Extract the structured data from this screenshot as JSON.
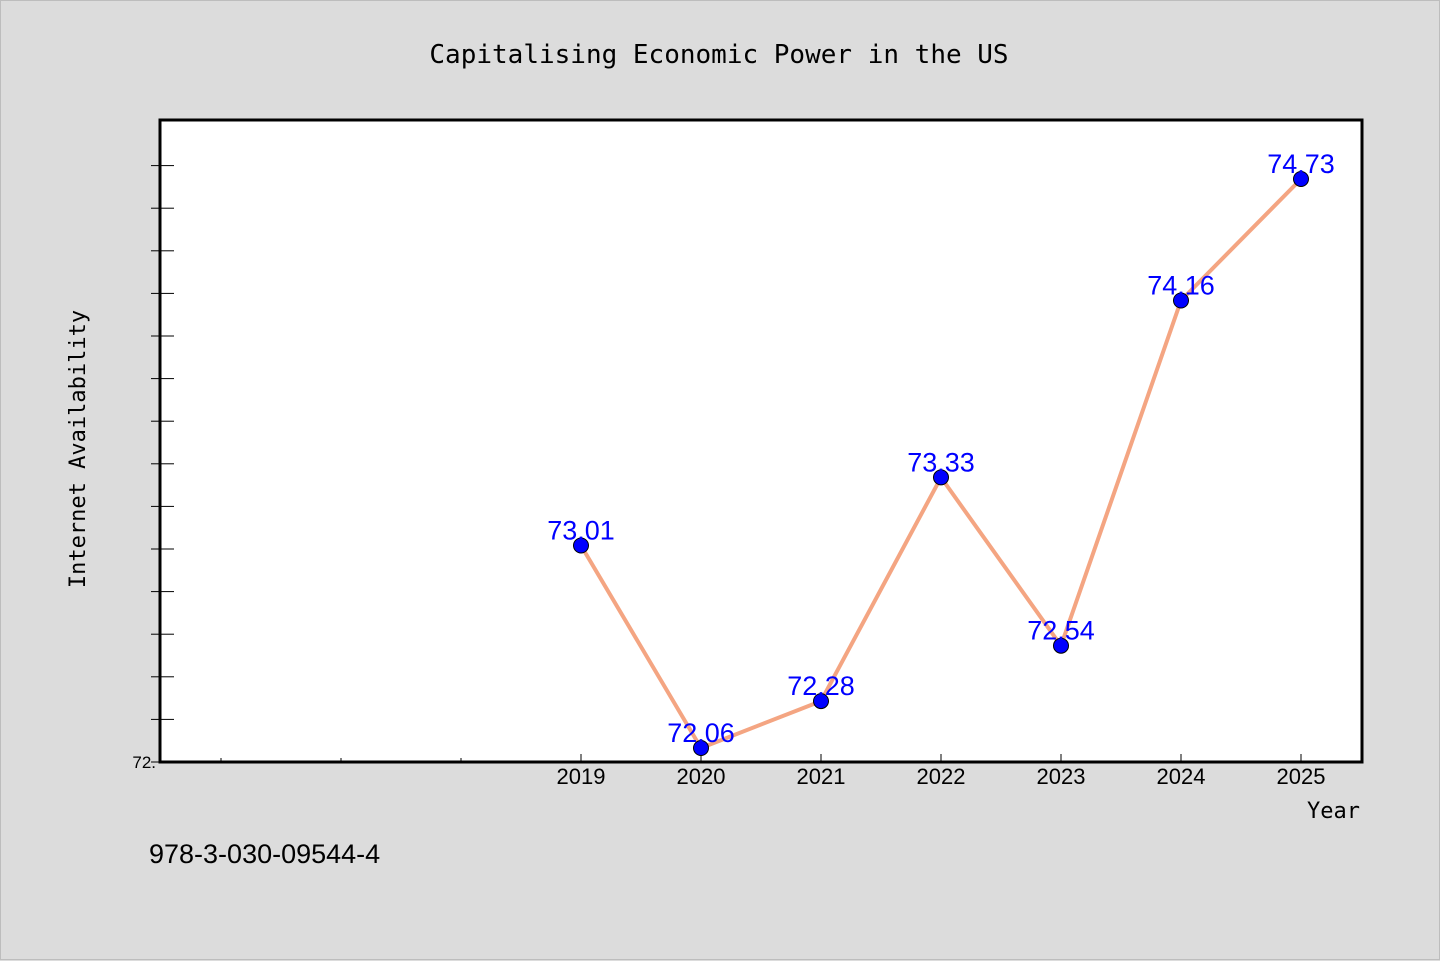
{
  "chart_data": {
    "type": "line",
    "title": "Capitalising Economic Power in the US",
    "xlabel": "Year",
    "ylabel": "Internet Availability",
    "x": [
      "2019",
      "2020",
      "2021",
      "2022",
      "2023",
      "2024",
      "2025"
    ],
    "series": [
      {
        "values": [
          73.01,
          72.06,
          72.28,
          73.33,
          72.54,
          74.16,
          74.73
        ],
        "line_color": "#f4a582",
        "marker_color": "#0000ff"
      }
    ],
    "data_labels": [
      "73.01",
      "72.06",
      "72.28",
      "73.33",
      "72.54",
      "74.16",
      "74.73"
    ],
    "ytick_labels": [
      "72."
    ],
    "ylim": [
      72.0,
      75.0
    ],
    "grid": false,
    "legend": "none"
  },
  "footer": {
    "isbn": "978-3-030-09544-4"
  }
}
